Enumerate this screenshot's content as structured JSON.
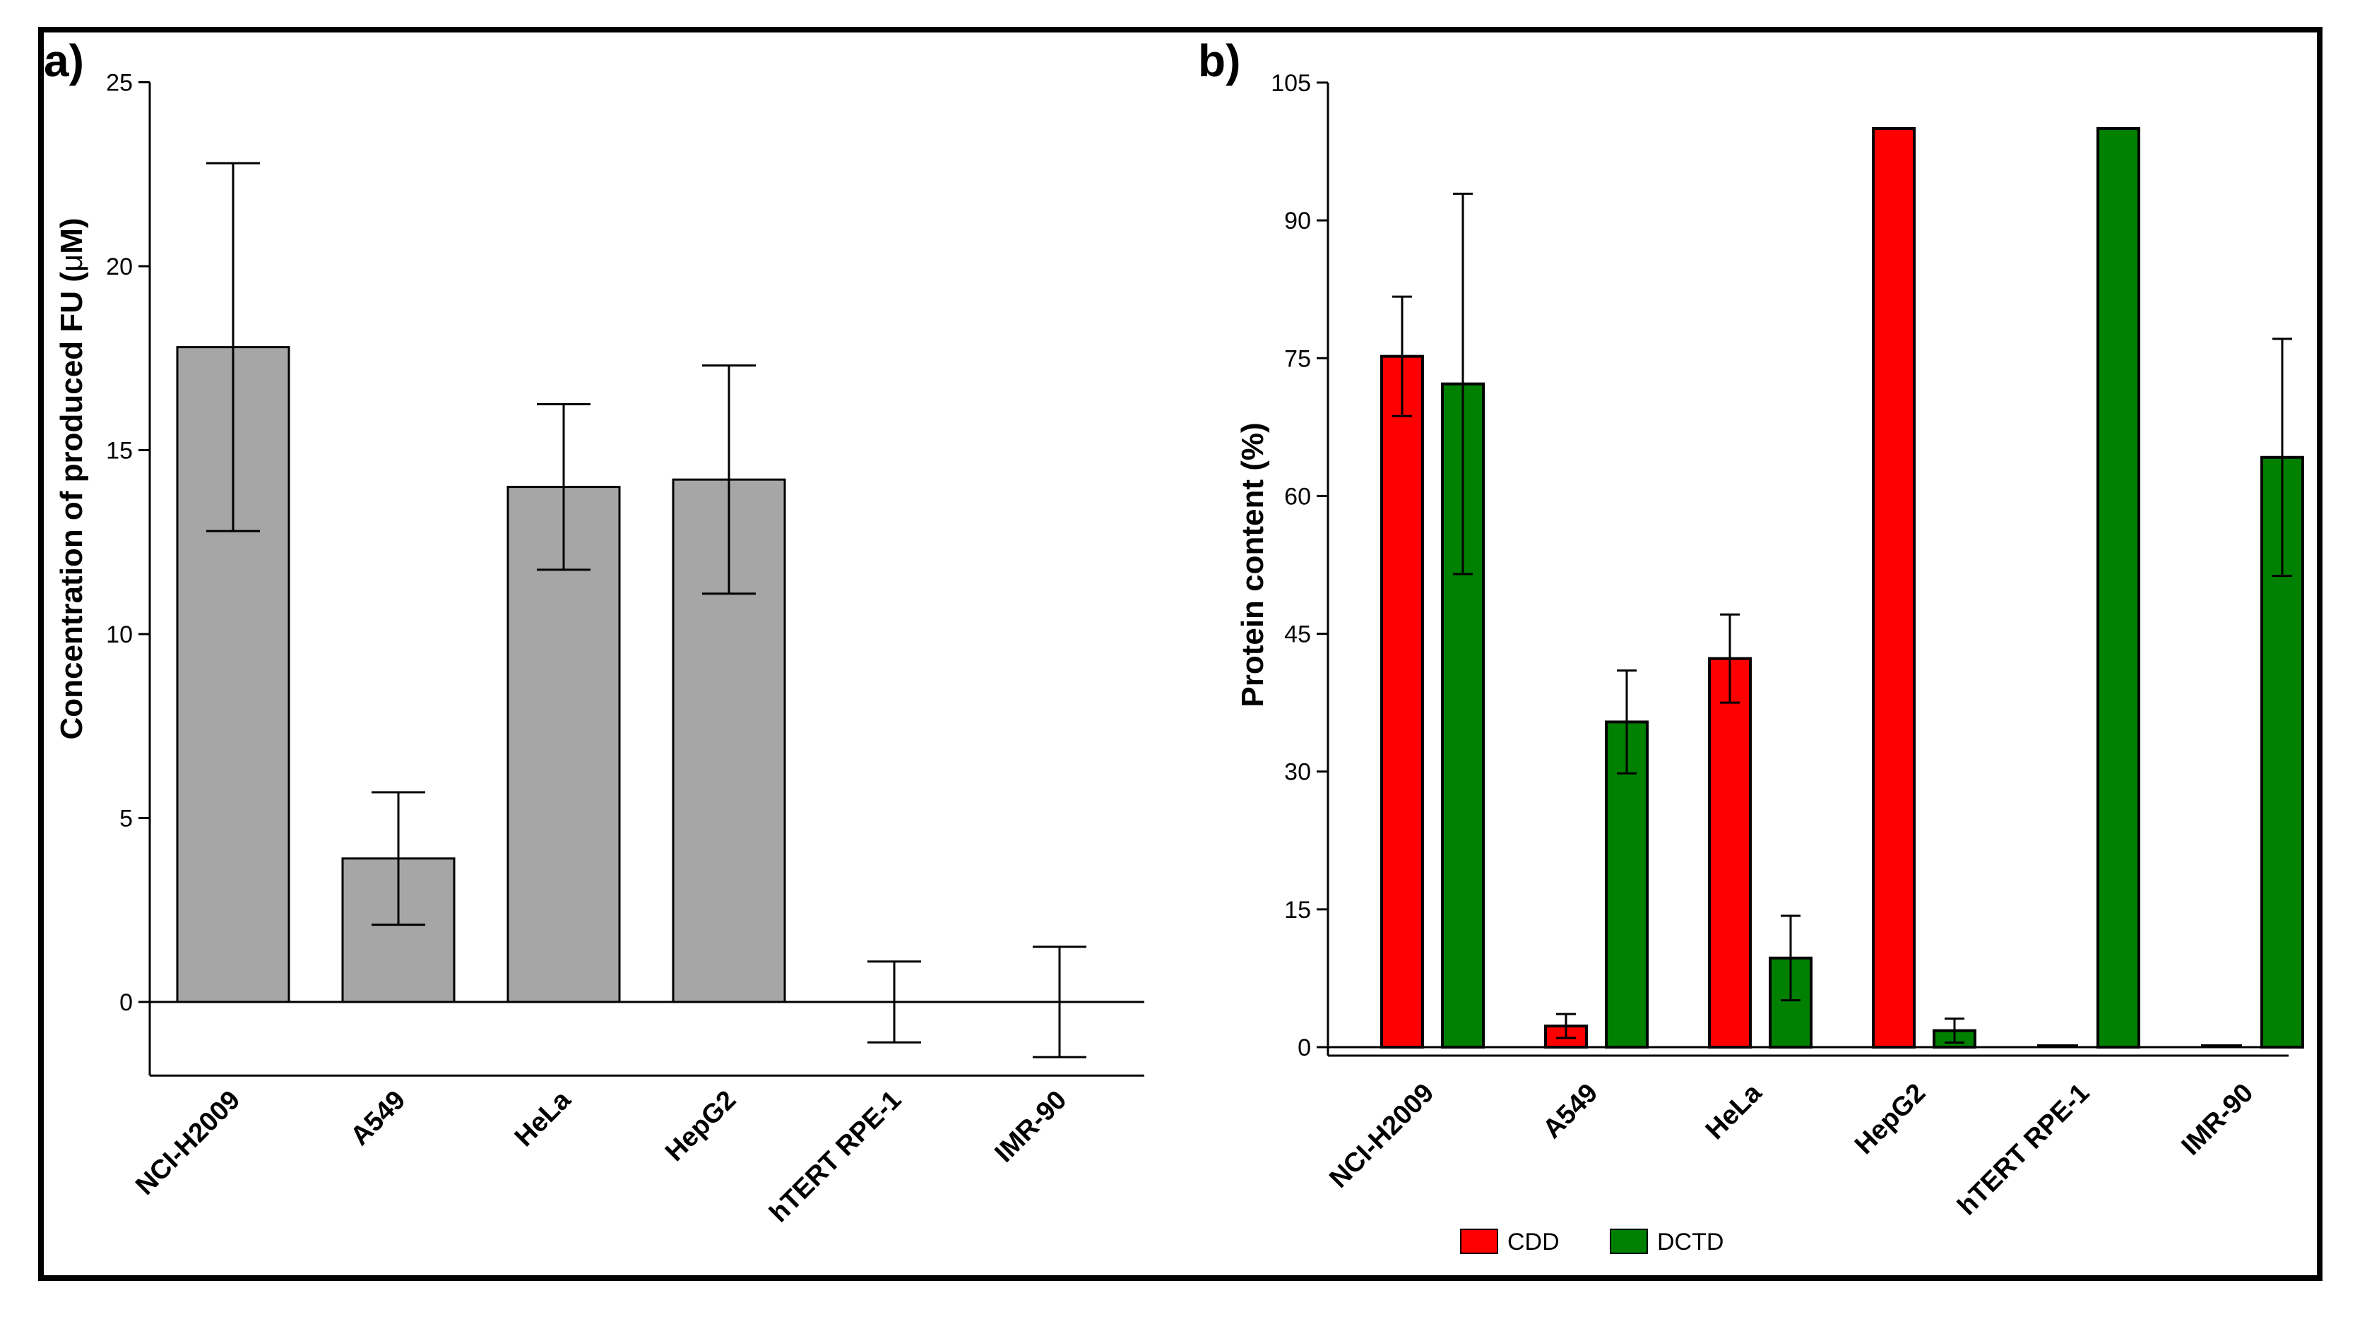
{
  "chart_data": [
    {
      "panel_label": "a)",
      "type": "bar",
      "ylabel_pre": "Concentration of produced FU (",
      "ylabel_mu": "μ",
      "ylabel_post": "M)",
      "categories": [
        "NCI-H2009",
        "A549",
        "HeLa",
        "HepG2",
        "hTERT RPE-1",
        "IMR-90"
      ],
      "values": [
        17.8,
        3.9,
        14.0,
        14.2,
        0,
        0
      ],
      "errors": [
        5.0,
        1.8,
        2.25,
        3.1,
        1.1,
        1.5
      ],
      "ylim": [
        -2,
        25
      ],
      "yticks": [
        0,
        5,
        10,
        15,
        20,
        25
      ],
      "color": "#a6a6a6"
    },
    {
      "panel_label": "b)",
      "type": "bar",
      "ylabel": "Protein content (%)",
      "categories": [
        "NCI-H2009",
        "A549",
        "HeLa",
        "HepG2",
        "hTERT RPE-1",
        "IMR-90"
      ],
      "ylim": [
        -1,
        105
      ],
      "yticks": [
        0,
        15,
        30,
        45,
        60,
        75,
        90,
        105
      ],
      "legend_position": "bottom",
      "series": [
        {
          "name": "CDD",
          "color": "#ff0000",
          "values": [
            75.2,
            2.3,
            42.3,
            100,
            0,
            0
          ],
          "errors": [
            6.5,
            1.3,
            4.8,
            0,
            0,
            0
          ]
        },
        {
          "name": "DCTD",
          "color": "#008000",
          "values": [
            72.2,
            35.4,
            9.7,
            1.8,
            100,
            64.2
          ],
          "errors": [
            20.7,
            5.6,
            4.6,
            1.3,
            0,
            12.9
          ]
        }
      ]
    }
  ]
}
